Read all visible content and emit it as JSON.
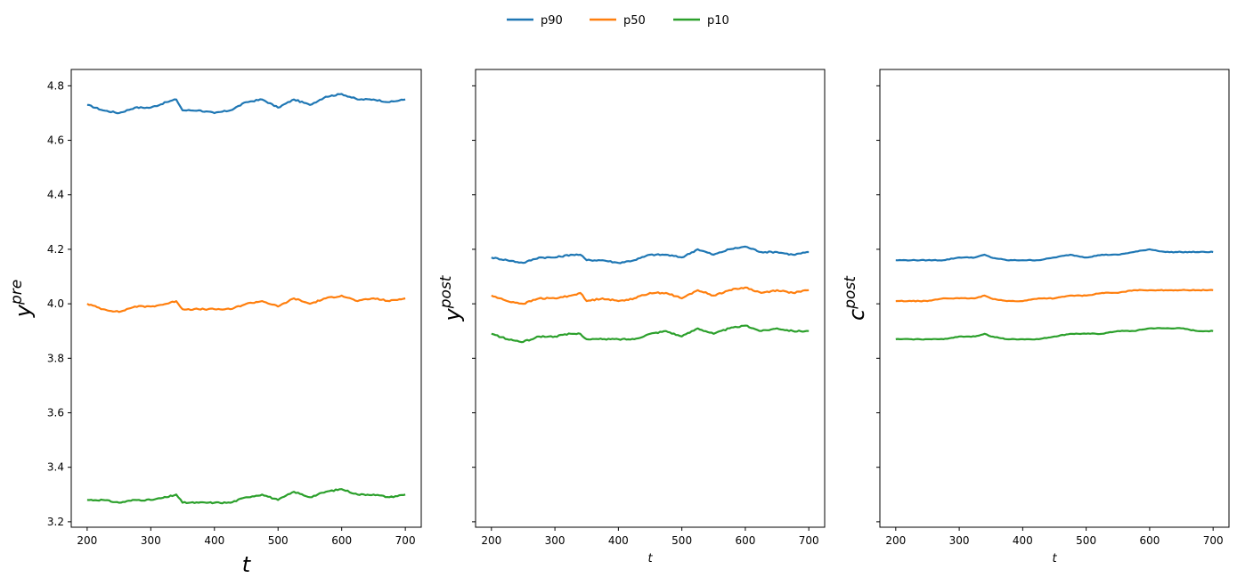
{
  "legend": {
    "placement": "top-center",
    "entries": [
      {
        "label": "p90",
        "color": "#1f77b4"
      },
      {
        "label": "p50",
        "color": "#ff7f0e"
      },
      {
        "label": "p10",
        "color": "#2ca02c"
      }
    ]
  },
  "chart_data": [
    {
      "type": "line",
      "xlabel": "t",
      "ylabel_base": "y",
      "ylabel_sup": "pre",
      "xlim": [
        175,
        725
      ],
      "ylim": [
        3.18,
        4.86
      ],
      "xticks": [
        200,
        300,
        400,
        500,
        600,
        700
      ],
      "yticks": [
        3.2,
        3.4,
        3.6,
        3.8,
        4.0,
        4.2,
        4.4,
        4.6,
        4.8
      ],
      "ytick_labels": [
        "3.2",
        "3.4",
        "3.6",
        "3.8",
        "4.0",
        "4.2",
        "4.4",
        "4.6",
        "4.8"
      ],
      "grid": false,
      "series": [
        {
          "name": "p90",
          "color": "#1f77b4",
          "x": [
            200,
            225,
            250,
            275,
            300,
            325,
            340,
            350,
            375,
            400,
            425,
            450,
            475,
            500,
            525,
            550,
            575,
            600,
            625,
            650,
            675,
            700
          ],
          "values": [
            4.73,
            4.71,
            4.7,
            4.72,
            4.72,
            4.74,
            4.75,
            4.71,
            4.71,
            4.7,
            4.71,
            4.74,
            4.75,
            4.72,
            4.75,
            4.73,
            4.76,
            4.77,
            4.75,
            4.75,
            4.74,
            4.75
          ]
        },
        {
          "name": "p50",
          "color": "#ff7f0e",
          "x": [
            200,
            225,
            250,
            275,
            300,
            325,
            340,
            350,
            375,
            400,
            425,
            450,
            475,
            500,
            525,
            550,
            575,
            600,
            625,
            650,
            675,
            700
          ],
          "values": [
            4.0,
            3.98,
            3.97,
            3.99,
            3.99,
            4.0,
            4.01,
            3.98,
            3.98,
            3.98,
            3.98,
            4.0,
            4.01,
            3.99,
            4.02,
            4.0,
            4.02,
            4.03,
            4.01,
            4.02,
            4.01,
            4.02
          ]
        },
        {
          "name": "p10",
          "color": "#2ca02c",
          "x": [
            200,
            225,
            250,
            275,
            300,
            325,
            340,
            350,
            375,
            400,
            425,
            450,
            475,
            500,
            525,
            550,
            575,
            600,
            625,
            650,
            675,
            700
          ],
          "values": [
            3.28,
            3.28,
            3.27,
            3.28,
            3.28,
            3.29,
            3.3,
            3.27,
            3.27,
            3.27,
            3.27,
            3.29,
            3.3,
            3.28,
            3.31,
            3.29,
            3.31,
            3.32,
            3.3,
            3.3,
            3.29,
            3.3
          ]
        }
      ]
    },
    {
      "type": "line",
      "xlabel": "t",
      "ylabel_base": "y",
      "ylabel_sup": "post",
      "xlim": [
        175,
        725
      ],
      "ylim": [
        3.18,
        4.86
      ],
      "xticks": [
        200,
        300,
        400,
        500,
        600,
        700
      ],
      "yticks": [
        3.2,
        3.4,
        3.6,
        3.8,
        4.0,
        4.2,
        4.4,
        4.6,
        4.8
      ],
      "grid": false,
      "series": [
        {
          "name": "p90",
          "color": "#1f77b4",
          "x": [
            200,
            225,
            250,
            275,
            300,
            325,
            340,
            350,
            375,
            400,
            425,
            450,
            475,
            500,
            525,
            550,
            575,
            600,
            625,
            650,
            675,
            700
          ],
          "values": [
            4.17,
            4.16,
            4.15,
            4.17,
            4.17,
            4.18,
            4.18,
            4.16,
            4.16,
            4.15,
            4.16,
            4.18,
            4.18,
            4.17,
            4.2,
            4.18,
            4.2,
            4.21,
            4.19,
            4.19,
            4.18,
            4.19
          ]
        },
        {
          "name": "p50",
          "color": "#ff7f0e",
          "x": [
            200,
            225,
            250,
            275,
            300,
            325,
            340,
            350,
            375,
            400,
            425,
            450,
            475,
            500,
            525,
            550,
            575,
            600,
            625,
            650,
            675,
            700
          ],
          "values": [
            4.03,
            4.01,
            4.0,
            4.02,
            4.02,
            4.03,
            4.04,
            4.01,
            4.02,
            4.01,
            4.02,
            4.04,
            4.04,
            4.02,
            4.05,
            4.03,
            4.05,
            4.06,
            4.04,
            4.05,
            4.04,
            4.05
          ]
        },
        {
          "name": "p10",
          "color": "#2ca02c",
          "x": [
            200,
            225,
            250,
            275,
            300,
            325,
            340,
            350,
            375,
            400,
            425,
            450,
            475,
            500,
            525,
            550,
            575,
            600,
            625,
            650,
            675,
            700
          ],
          "values": [
            3.89,
            3.87,
            3.86,
            3.88,
            3.88,
            3.89,
            3.89,
            3.87,
            3.87,
            3.87,
            3.87,
            3.89,
            3.9,
            3.88,
            3.91,
            3.89,
            3.91,
            3.92,
            3.9,
            3.91,
            3.9,
            3.9
          ]
        }
      ]
    },
    {
      "type": "line",
      "xlabel": "t",
      "ylabel_base": "c",
      "ylabel_sup": "post",
      "xlim": [
        175,
        725
      ],
      "ylim": [
        3.18,
        4.86
      ],
      "xticks": [
        200,
        300,
        400,
        500,
        600,
        700
      ],
      "yticks": [
        3.2,
        3.4,
        3.6,
        3.8,
        4.0,
        4.2,
        4.4,
        4.6,
        4.8
      ],
      "grid": false,
      "series": [
        {
          "name": "p90",
          "color": "#1f77b4",
          "x": [
            200,
            225,
            250,
            275,
            300,
            325,
            340,
            350,
            375,
            400,
            425,
            450,
            475,
            500,
            525,
            550,
            575,
            600,
            625,
            650,
            675,
            700
          ],
          "values": [
            4.16,
            4.16,
            4.16,
            4.16,
            4.17,
            4.17,
            4.18,
            4.17,
            4.16,
            4.16,
            4.16,
            4.17,
            4.18,
            4.17,
            4.18,
            4.18,
            4.19,
            4.2,
            4.19,
            4.19,
            4.19,
            4.19
          ]
        },
        {
          "name": "p50",
          "color": "#ff7f0e",
          "x": [
            200,
            225,
            250,
            275,
            300,
            325,
            340,
            350,
            375,
            400,
            425,
            450,
            475,
            500,
            525,
            550,
            575,
            600,
            625,
            650,
            675,
            700
          ],
          "values": [
            4.01,
            4.01,
            4.01,
            4.02,
            4.02,
            4.02,
            4.03,
            4.02,
            4.01,
            4.01,
            4.02,
            4.02,
            4.03,
            4.03,
            4.04,
            4.04,
            4.05,
            4.05,
            4.05,
            4.05,
            4.05,
            4.05
          ]
        },
        {
          "name": "p10",
          "color": "#2ca02c",
          "x": [
            200,
            225,
            250,
            275,
            300,
            325,
            340,
            350,
            375,
            400,
            425,
            450,
            475,
            500,
            525,
            550,
            575,
            600,
            625,
            650,
            675,
            700
          ],
          "values": [
            3.87,
            3.87,
            3.87,
            3.87,
            3.88,
            3.88,
            3.89,
            3.88,
            3.87,
            3.87,
            3.87,
            3.88,
            3.89,
            3.89,
            3.89,
            3.9,
            3.9,
            3.91,
            3.91,
            3.91,
            3.9,
            3.9
          ]
        }
      ]
    }
  ]
}
